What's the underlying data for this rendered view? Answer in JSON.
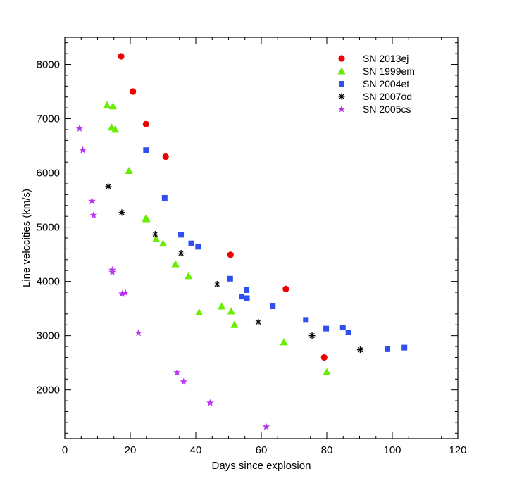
{
  "chart_data": {
    "type": "scatter",
    "title": "",
    "xlabel": "Days since explosion",
    "ylabel": "Line velocities (km/s)",
    "xlim": [
      0,
      120
    ],
    "ylim": [
      1100,
      8500
    ],
    "xticks": [
      0,
      20,
      40,
      60,
      80,
      100,
      120
    ],
    "yticks": [
      2000,
      3000,
      4000,
      5000,
      6000,
      7000,
      8000
    ],
    "xtick_labels": [
      "0",
      "20",
      "40",
      "60",
      "80",
      "100",
      "120"
    ],
    "ytick_labels": [
      "2000",
      "3000",
      "4000",
      "5000",
      "6000",
      "7000",
      "8000"
    ],
    "grid": false,
    "legend_position": "top-right",
    "series": [
      {
        "name": "SN 2013ej",
        "marker": "circle",
        "color": "#ee0000",
        "points": [
          [
            17.2,
            8150
          ],
          [
            20.8,
            7500
          ],
          [
            24.8,
            6900
          ],
          [
            30.8,
            6300
          ],
          [
            50.6,
            4490
          ],
          [
            67.5,
            3860
          ],
          [
            79.2,
            2600
          ]
        ]
      },
      {
        "name": "SN 1999em",
        "marker": "triangle",
        "color": "#66ee00",
        "points": [
          [
            12.9,
            7250
          ],
          [
            14.7,
            7230
          ],
          [
            14.3,
            6840
          ],
          [
            15.4,
            6800
          ],
          [
            19.6,
            6040
          ],
          [
            24.8,
            5170
          ],
          [
            24.9,
            5150
          ],
          [
            27.9,
            4780
          ],
          [
            30.0,
            4700
          ],
          [
            33.8,
            4320
          ],
          [
            37.8,
            4100
          ],
          [
            41.0,
            3430
          ],
          [
            47.9,
            3540
          ],
          [
            50.8,
            3450
          ],
          [
            51.8,
            3200
          ],
          [
            66.9,
            2880
          ],
          [
            80.0,
            2330
          ]
        ]
      },
      {
        "name": "SN 2004et",
        "marker": "square",
        "color": "#2f4ff0",
        "points": [
          [
            24.8,
            6420
          ],
          [
            30.5,
            5540
          ],
          [
            35.5,
            4860
          ],
          [
            38.6,
            4700
          ],
          [
            40.7,
            4640
          ],
          [
            50.5,
            4050
          ],
          [
            54.0,
            3720
          ],
          [
            55.5,
            3840
          ],
          [
            55.6,
            3690
          ],
          [
            63.5,
            3540
          ],
          [
            73.6,
            3290
          ],
          [
            79.8,
            3130
          ],
          [
            84.9,
            3150
          ],
          [
            86.6,
            3060
          ],
          [
            98.5,
            2750
          ],
          [
            103.7,
            2780
          ]
        ]
      },
      {
        "name": "SN 2007od",
        "marker": "asterisk",
        "color": "#000000",
        "points": [
          [
            13.3,
            5750
          ],
          [
            17.4,
            5270
          ],
          [
            27.6,
            4870
          ],
          [
            35.5,
            4520
          ],
          [
            46.5,
            3950
          ],
          [
            59.1,
            3250
          ],
          [
            75.5,
            3000
          ],
          [
            90.2,
            2740
          ]
        ]
      },
      {
        "name": "SN 2005cs",
        "marker": "star",
        "color": "#bb33ee",
        "points": [
          [
            4.5,
            6820
          ],
          [
            5.5,
            6420
          ],
          [
            8.3,
            5480
          ],
          [
            8.8,
            5220
          ],
          [
            14.5,
            4210
          ],
          [
            14.5,
            4170
          ],
          [
            17.5,
            3770
          ],
          [
            18.5,
            3790
          ],
          [
            22.5,
            3050
          ],
          [
            34.3,
            2320
          ],
          [
            36.3,
            2150
          ],
          [
            44.4,
            1760
          ],
          [
            61.5,
            1320
          ]
        ]
      }
    ]
  }
}
